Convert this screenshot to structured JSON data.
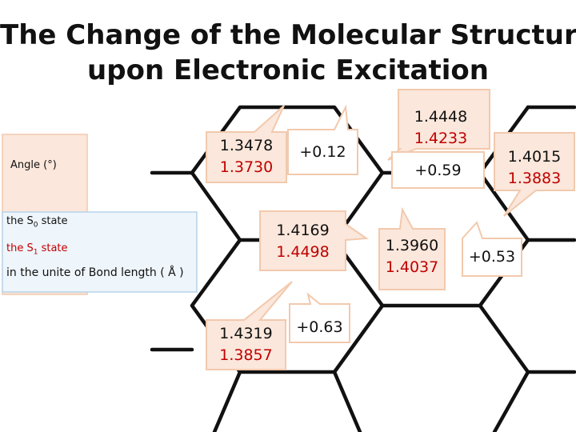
{
  "title": {
    "line1": "The Change of the Molecular Structure",
    "line2": "upon Electronic Excitation"
  },
  "legend": {
    "angle_label": "Angle (°)",
    "s0_prefix": "the S",
    "s0_sub": "0",
    "s0_suffix": " state",
    "s1_prefix": "the S",
    "s1_sub": "1",
    "s1_suffix": " state",
    "unit_note": "in the unite of Bond length ( Å )"
  },
  "callouts": [
    {
      "id": "bond-top-left",
      "s0": "1.3478",
      "s1": "1.3730"
    },
    {
      "id": "angle-top",
      "text": "+0.12"
    },
    {
      "id": "bond-top-mid",
      "s0": "1.4448",
      "s1": "1.4233"
    },
    {
      "id": "angle-right-top",
      "text": "+0.59"
    },
    {
      "id": "bond-top-right",
      "s0": "1.4015",
      "s1": "1.3883"
    },
    {
      "id": "bond-center",
      "s0": "1.4169",
      "s1": "1.4498"
    },
    {
      "id": "bond-mid-right",
      "s0": "1.3960",
      "s1": "1.4037"
    },
    {
      "id": "angle-right",
      "text": "+0.53"
    },
    {
      "id": "bond-bottom",
      "s0": "1.4319",
      "s1": "1.3857"
    },
    {
      "id": "angle-bottom",
      "text": "+0.63"
    }
  ],
  "colors": {
    "s0_text": "#111111",
    "s1_text": "#c00000",
    "bond_callout_fill": "#fbe7db",
    "angle_callout_fill": "#ffffff",
    "callout_border": "#f2c9ad",
    "legend_fill": "#eef5fb",
    "legend_border": "#b7d4ea",
    "angle_panel_fill": "#fbe7db",
    "structure_line": "#111111"
  }
}
